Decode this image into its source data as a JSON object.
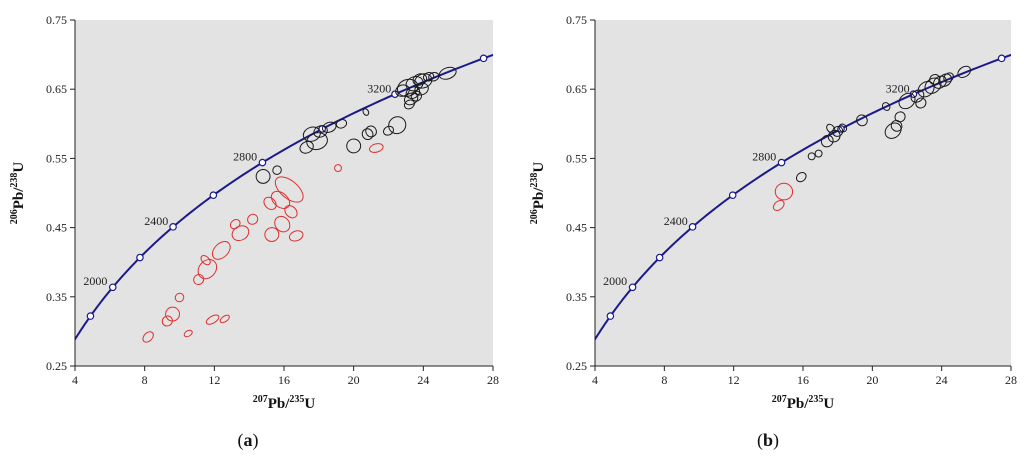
{
  "panel_labels": [
    "(a)",
    "(b)"
  ],
  "colors": {
    "concordia": "#1a1a8c",
    "concordant": "#1a1a1a",
    "discordant": "#e03030",
    "plot_bg": "#e3e3e3"
  },
  "chart_data": [
    {
      "type": "scatter",
      "title": "",
      "panel_label": "(a)",
      "x_axis": {
        "label_mass": "207",
        "label_element": "Pb",
        "label_sep": "/",
        "label_mass2": "235",
        "label_element2": "U",
        "range": [
          4,
          28
        ],
        "ticks": [
          "4",
          "8",
          "12",
          "16",
          "20",
          "24",
          "28"
        ]
      },
      "y_axis": {
        "label_mass": "206",
        "label_element": "Pb",
        "label_sep": "/",
        "label_mass2": "238",
        "label_element2": "U",
        "range": [
          0.25,
          0.75
        ],
        "ticks": [
          "0.25",
          "0.35",
          "0.45",
          "0.55",
          "0.65",
          "0.75"
        ]
      },
      "concordia_age_labels": [
        {
          "age": "2000",
          "x": 6.2,
          "y": 0.364
        },
        {
          "age": "2400",
          "x": 9.7,
          "y": 0.451
        },
        {
          "age": "2800",
          "x": 14.8,
          "y": 0.544
        },
        {
          "age": "3200",
          "x": 22.5,
          "y": 0.642
        }
      ],
      "ellipses": [
        {
          "group": "concordant",
          "x": 17.6,
          "y": 0.585,
          "rx": 0.5,
          "ry": 0.01,
          "rot": -20
        },
        {
          "group": "concordant",
          "x": 17.9,
          "y": 0.575,
          "rx": 0.6,
          "ry": 0.012,
          "rot": -15
        },
        {
          "group": "concordant",
          "x": 18.1,
          "y": 0.589,
          "rx": 0.4,
          "ry": 0.008,
          "rot": -25
        },
        {
          "group": "concordant",
          "x": 17.3,
          "y": 0.566,
          "rx": 0.4,
          "ry": 0.008,
          "rot": -30
        },
        {
          "group": "concordant",
          "x": 18.6,
          "y": 0.595,
          "rx": 0.4,
          "ry": 0.007,
          "rot": -20
        },
        {
          "group": "concordant",
          "x": 19.3,
          "y": 0.6,
          "rx": 0.3,
          "ry": 0.006,
          "rot": -20
        },
        {
          "group": "concordant",
          "x": 20.0,
          "y": 0.568,
          "rx": 0.4,
          "ry": 0.01,
          "rot": -35
        },
        {
          "group": "concordant",
          "x": 20.8,
          "y": 0.585,
          "rx": 0.3,
          "ry": 0.008,
          "rot": -40
        },
        {
          "group": "concordant",
          "x": 21.0,
          "y": 0.589,
          "rx": 0.3,
          "ry": 0.008,
          "rot": -40
        },
        {
          "group": "concordant",
          "x": 20.7,
          "y": 0.617,
          "rx": 0.15,
          "ry": 0.005,
          "rot": -30
        },
        {
          "group": "concordant",
          "x": 22.5,
          "y": 0.598,
          "rx": 0.5,
          "ry": 0.012,
          "rot": -40
        },
        {
          "group": "concordant",
          "x": 22.0,
          "y": 0.59,
          "rx": 0.3,
          "ry": 0.006,
          "rot": -30
        },
        {
          "group": "concordant",
          "x": 23.1,
          "y": 0.652,
          "rx": 0.6,
          "ry": 0.012,
          "rot": -20
        },
        {
          "group": "concordant",
          "x": 23.5,
          "y": 0.658,
          "rx": 0.5,
          "ry": 0.01,
          "rot": -20
        },
        {
          "group": "concordant",
          "x": 23.8,
          "y": 0.664,
          "rx": 0.4,
          "ry": 0.008,
          "rot": -20
        },
        {
          "group": "concordant",
          "x": 24.0,
          "y": 0.662,
          "rx": 0.5,
          "ry": 0.01,
          "rot": -20
        },
        {
          "group": "concordant",
          "x": 23.4,
          "y": 0.645,
          "rx": 0.4,
          "ry": 0.008,
          "rot": -25
        },
        {
          "group": "concordant",
          "x": 23.9,
          "y": 0.65,
          "rx": 0.4,
          "ry": 0.008,
          "rot": -25
        },
        {
          "group": "concordant",
          "x": 23.3,
          "y": 0.636,
          "rx": 0.4,
          "ry": 0.008,
          "rot": -30
        },
        {
          "group": "concordant",
          "x": 23.2,
          "y": 0.628,
          "rx": 0.3,
          "ry": 0.006,
          "rot": -30
        },
        {
          "group": "concordant",
          "x": 24.3,
          "y": 0.668,
          "rx": 0.3,
          "ry": 0.006,
          "rot": -20
        },
        {
          "group": "concordant",
          "x": 24.6,
          "y": 0.668,
          "rx": 0.3,
          "ry": 0.006,
          "rot": -20
        },
        {
          "group": "concordant",
          "x": 25.4,
          "y": 0.673,
          "rx": 0.5,
          "ry": 0.008,
          "rot": -20
        },
        {
          "group": "concordant",
          "x": 22.8,
          "y": 0.648,
          "rx": 0.4,
          "ry": 0.008,
          "rot": -20
        },
        {
          "group": "concordant",
          "x": 23.6,
          "y": 0.64,
          "rx": 0.3,
          "ry": 0.007,
          "rot": -25
        },
        {
          "group": "concordant",
          "x": 14.8,
          "y": 0.524,
          "rx": 0.4,
          "ry": 0.01,
          "rot": -40
        },
        {
          "group": "concordant",
          "x": 15.6,
          "y": 0.533,
          "rx": 0.25,
          "ry": 0.006,
          "rot": -40
        },
        {
          "group": "discordant",
          "x": 21.3,
          "y": 0.565,
          "rx": 0.4,
          "ry": 0.006,
          "rot": -15
        },
        {
          "group": "discordant",
          "x": 19.1,
          "y": 0.536,
          "rx": 0.2,
          "ry": 0.005,
          "rot": -40
        },
        {
          "group": "discordant",
          "x": 16.3,
          "y": 0.505,
          "rx": 0.5,
          "ry": 0.024,
          "rot": -50
        },
        {
          "group": "discordant",
          "x": 15.8,
          "y": 0.49,
          "rx": 0.4,
          "ry": 0.015,
          "rot": -50
        },
        {
          "group": "discordant",
          "x": 15.2,
          "y": 0.485,
          "rx": 0.3,
          "ry": 0.01,
          "rot": -45
        },
        {
          "group": "discordant",
          "x": 16.4,
          "y": 0.473,
          "rx": 0.3,
          "ry": 0.01,
          "rot": -45
        },
        {
          "group": "discordant",
          "x": 15.9,
          "y": 0.455,
          "rx": 0.4,
          "ry": 0.012,
          "rot": -40
        },
        {
          "group": "discordant",
          "x": 15.3,
          "y": 0.44,
          "rx": 0.4,
          "ry": 0.01,
          "rot": -40
        },
        {
          "group": "discordant",
          "x": 16.7,
          "y": 0.438,
          "rx": 0.4,
          "ry": 0.007,
          "rot": -20
        },
        {
          "group": "discordant",
          "x": 14.2,
          "y": 0.462,
          "rx": 0.3,
          "ry": 0.007,
          "rot": -40
        },
        {
          "group": "discordant",
          "x": 13.5,
          "y": 0.442,
          "rx": 0.5,
          "ry": 0.01,
          "rot": -30
        },
        {
          "group": "discordant",
          "x": 13.2,
          "y": 0.455,
          "rx": 0.3,
          "ry": 0.006,
          "rot": -40
        },
        {
          "group": "discordant",
          "x": 12.4,
          "y": 0.417,
          "rx": 0.6,
          "ry": 0.01,
          "rot": -45
        },
        {
          "group": "discordant",
          "x": 11.6,
          "y": 0.39,
          "rx": 0.6,
          "ry": 0.012,
          "rot": -50
        },
        {
          "group": "discordant",
          "x": 11.5,
          "y": 0.403,
          "rx": 0.2,
          "ry": 0.008,
          "rot": -45
        },
        {
          "group": "discordant",
          "x": 11.1,
          "y": 0.375,
          "rx": 0.3,
          "ry": 0.007,
          "rot": -45
        },
        {
          "group": "discordant",
          "x": 10.0,
          "y": 0.349,
          "rx": 0.25,
          "ry": 0.006,
          "rot": -45
        },
        {
          "group": "discordant",
          "x": 9.6,
          "y": 0.325,
          "rx": 0.4,
          "ry": 0.01,
          "rot": -45
        },
        {
          "group": "discordant",
          "x": 9.3,
          "y": 0.315,
          "rx": 0.3,
          "ry": 0.007,
          "rot": -40
        },
        {
          "group": "discordant",
          "x": 11.9,
          "y": 0.317,
          "rx": 0.4,
          "ry": 0.005,
          "rot": -30
        },
        {
          "group": "discordant",
          "x": 12.6,
          "y": 0.318,
          "rx": 0.3,
          "ry": 0.004,
          "rot": -35
        },
        {
          "group": "discordant",
          "x": 8.2,
          "y": 0.292,
          "rx": 0.35,
          "ry": 0.006,
          "rot": -45
        },
        {
          "group": "discordant",
          "x": 10.5,
          "y": 0.297,
          "rx": 0.25,
          "ry": 0.004,
          "rot": -30
        }
      ]
    },
    {
      "type": "scatter",
      "title": "",
      "panel_label": "(b)",
      "x_axis": {
        "label_mass": "207",
        "label_element": "Pb",
        "label_sep": "/",
        "label_mass2": "235",
        "label_element2": "U",
        "range": [
          4,
          28
        ],
        "ticks": [
          "4",
          "8",
          "12",
          "16",
          "20",
          "24",
          "28"
        ]
      },
      "y_axis": {
        "label_mass": "206",
        "label_element": "Pb",
        "label_sep": "/",
        "label_mass2": "238",
        "label_element2": "U",
        "range": [
          0.25,
          0.75
        ],
        "ticks": [
          "0.25",
          "0.35",
          "0.45",
          "0.55",
          "0.65",
          "0.75"
        ]
      },
      "concordia_age_labels": [
        {
          "age": "2000",
          "x": 6.2,
          "y": 0.364
        },
        {
          "age": "2400",
          "x": 9.7,
          "y": 0.451
        },
        {
          "age": "2800",
          "x": 14.8,
          "y": 0.544
        },
        {
          "age": "3200",
          "x": 22.5,
          "y": 0.642
        }
      ],
      "ellipses": [
        {
          "group": "concordant",
          "x": 16.5,
          "y": 0.553,
          "rx": 0.2,
          "ry": 0.005,
          "rot": -40
        },
        {
          "group": "concordant",
          "x": 16.9,
          "y": 0.557,
          "rx": 0.2,
          "ry": 0.005,
          "rot": -40
        },
        {
          "group": "concordant",
          "x": 17.4,
          "y": 0.575,
          "rx": 0.35,
          "ry": 0.008,
          "rot": -40
        },
        {
          "group": "concordant",
          "x": 17.8,
          "y": 0.582,
          "rx": 0.35,
          "ry": 0.008,
          "rot": -40
        },
        {
          "group": "concordant",
          "x": 18.0,
          "y": 0.589,
          "rx": 0.3,
          "ry": 0.007,
          "rot": -40
        },
        {
          "group": "concordant",
          "x": 17.6,
          "y": 0.593,
          "rx": 0.2,
          "ry": 0.007,
          "rot": -40
        },
        {
          "group": "concordant",
          "x": 18.3,
          "y": 0.594,
          "rx": 0.2,
          "ry": 0.006,
          "rot": -40
        },
        {
          "group": "concordant",
          "x": 19.4,
          "y": 0.605,
          "rx": 0.3,
          "ry": 0.008,
          "rot": -40
        },
        {
          "group": "concordant",
          "x": 15.9,
          "y": 0.523,
          "rx": 0.3,
          "ry": 0.006,
          "rot": -40
        },
        {
          "group": "concordant",
          "x": 21.2,
          "y": 0.59,
          "rx": 0.5,
          "ry": 0.01,
          "rot": -40
        },
        {
          "group": "concordant",
          "x": 21.4,
          "y": 0.597,
          "rx": 0.3,
          "ry": 0.008,
          "rot": -40
        },
        {
          "group": "concordant",
          "x": 21.6,
          "y": 0.61,
          "rx": 0.3,
          "ry": 0.007,
          "rot": -40
        },
        {
          "group": "concordant",
          "x": 22.0,
          "y": 0.633,
          "rx": 0.5,
          "ry": 0.01,
          "rot": -40
        },
        {
          "group": "concordant",
          "x": 22.6,
          "y": 0.64,
          "rx": 0.4,
          "ry": 0.008,
          "rot": -40
        },
        {
          "group": "concordant",
          "x": 23.1,
          "y": 0.65,
          "rx": 0.5,
          "ry": 0.01,
          "rot": -40
        },
        {
          "group": "concordant",
          "x": 23.5,
          "y": 0.655,
          "rx": 0.5,
          "ry": 0.01,
          "rot": -40
        },
        {
          "group": "concordant",
          "x": 23.9,
          "y": 0.66,
          "rx": 0.4,
          "ry": 0.008,
          "rot": -40
        },
        {
          "group": "concordant",
          "x": 24.2,
          "y": 0.663,
          "rx": 0.4,
          "ry": 0.008,
          "rot": -40
        },
        {
          "group": "concordant",
          "x": 23.6,
          "y": 0.664,
          "rx": 0.3,
          "ry": 0.007,
          "rot": -40
        },
        {
          "group": "concordant",
          "x": 24.4,
          "y": 0.667,
          "rx": 0.3,
          "ry": 0.006,
          "rot": -40
        },
        {
          "group": "concordant",
          "x": 22.8,
          "y": 0.63,
          "rx": 0.3,
          "ry": 0.007,
          "rot": -40
        },
        {
          "group": "concordant",
          "x": 25.3,
          "y": 0.675,
          "rx": 0.4,
          "ry": 0.007,
          "rot": -35
        },
        {
          "group": "concordant",
          "x": 20.8,
          "y": 0.625,
          "rx": 0.2,
          "ry": 0.006,
          "rot": -40
        },
        {
          "group": "discordant",
          "x": 14.9,
          "y": 0.502,
          "rx": 0.5,
          "ry": 0.012,
          "rot": 0
        },
        {
          "group": "discordant",
          "x": 14.6,
          "y": 0.482,
          "rx": 0.35,
          "ry": 0.006,
          "rot": -40
        }
      ]
    }
  ]
}
